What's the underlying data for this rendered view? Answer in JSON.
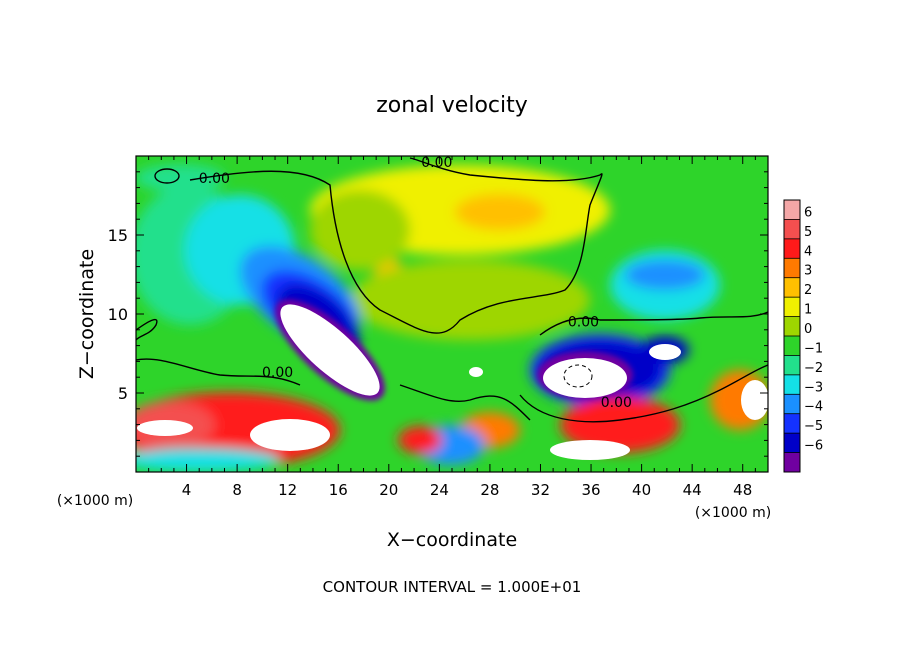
{
  "chart_data": {
    "type": "heatmap",
    "title": "zonal velocity",
    "xlabel": "X−coordinate",
    "ylabel": "Z−coordinate",
    "x_unit_left": "(×1000 m)",
    "x_unit_right": "(×1000 m)",
    "xlim": [
      0,
      50
    ],
    "ylim": [
      0,
      20
    ],
    "x_ticks": [
      4,
      8,
      12,
      16,
      20,
      24,
      28,
      32,
      36,
      40,
      44,
      48
    ],
    "y_ticks": [
      5,
      10,
      15
    ],
    "contour_label": "0.00",
    "contour_labels": [
      {
        "text": "0.00",
        "x": 6.2,
        "y": 18.3
      },
      {
        "text": "0.00",
        "x": 23.8,
        "y": 19.3
      },
      {
        "text": "0.00",
        "x": 35.4,
        "y": 9.2
      },
      {
        "text": "0.00",
        "x": 11.2,
        "y": 6.0
      },
      {
        "text": "0.00",
        "x": 38.0,
        "y": 4.1
      }
    ],
    "footer": "CONTOUR INTERVAL = 1.000E+01",
    "colorbar": {
      "levels": [
        6,
        5,
        4,
        3,
        2,
        1,
        0,
        -1,
        -2,
        -3,
        -4,
        -5,
        -6
      ],
      "colors": [
        "#f4a7a7",
        "#f44f4f",
        "#ff1a1a",
        "#ff7a00",
        "#ffc000",
        "#f0f000",
        "#9ed600",
        "#2ed42a",
        "#22e08c",
        "#14e0e6",
        "#1a90ff",
        "#1432ff",
        "#0000c8",
        "#7000a0"
      ]
    },
    "grid": false
  }
}
